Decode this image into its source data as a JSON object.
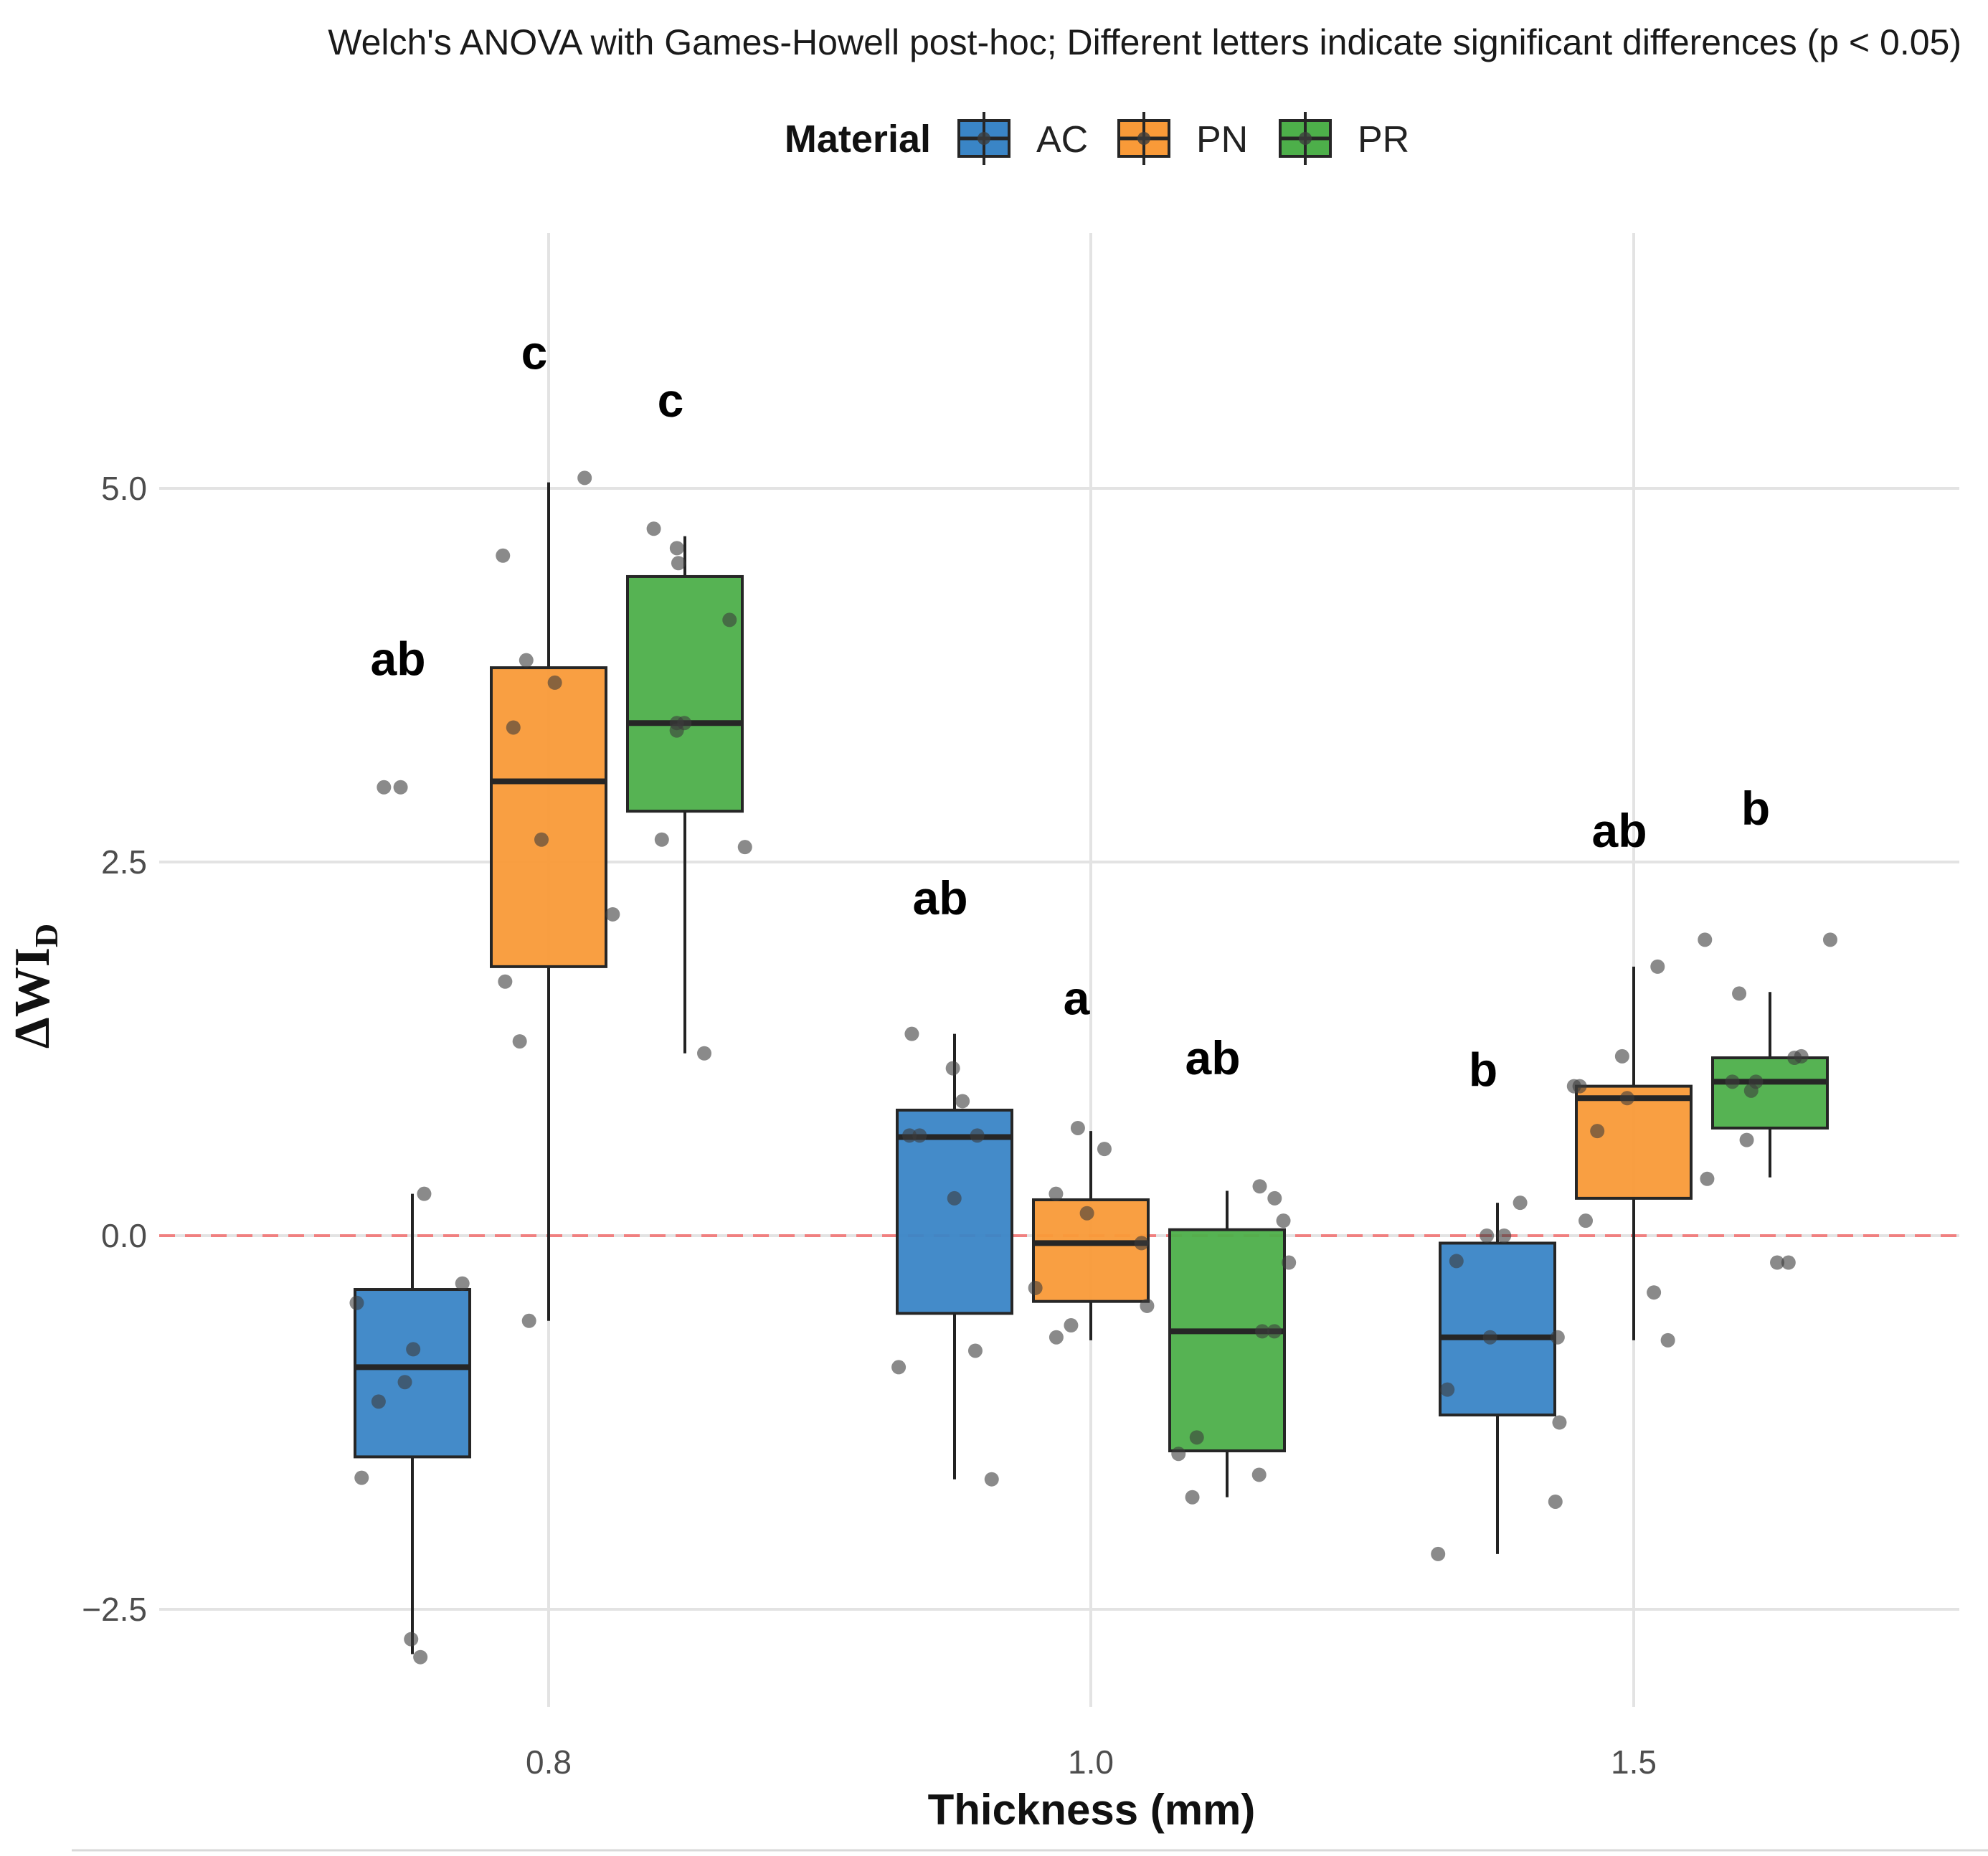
{
  "chart_data": {
    "type": "box",
    "subtitle": "Welch's ANOVA with Games-Howell post-hoc; Different letters indicate significant differences (p < 0.05)",
    "xlabel": "Thickness (mm)",
    "ylabel": "ΔWI",
    "ylabel_sub": "D",
    "categories": [
      "0.8",
      "1.0",
      "1.5"
    ],
    "ylim": [
      -3.2,
      6.7
    ],
    "yticks": [
      -2.5,
      0.0,
      2.5,
      5.0
    ],
    "ytick_labels": [
      "−2.5",
      "0.0",
      "2.5",
      "5.0"
    ],
    "reference_line": {
      "y": 0.0,
      "style": "dashed",
      "color": "#f08080"
    },
    "grid": true,
    "legend": {
      "title": "Material",
      "position": "top"
    },
    "series": [
      {
        "name": "AC",
        "color": "#3a85c6",
        "boxes": [
          {
            "category": "0.8",
            "whisker_low": -2.8,
            "q1": -1.48,
            "median": -0.88,
            "q3": -0.36,
            "whisker_high": 0.28,
            "letter": "ab",
            "letter_y": 3.75,
            "points": [
              -2.7,
              -2.82,
              -1.62,
              -1.11,
              -0.98,
              -0.76,
              -0.45,
              -0.32,
              0.28,
              3.0,
              3.0
            ]
          },
          {
            "category": "1.0",
            "whisker_low": -1.63,
            "q1": -0.52,
            "median": 0.66,
            "q3": 0.84,
            "whisker_high": 1.35,
            "letter": "ab",
            "letter_y": 2.15,
            "points": [
              -1.63,
              -0.77,
              -0.88,
              0.25,
              0.67,
              0.67,
              0.67,
              0.9,
              1.12,
              1.35
            ]
          },
          {
            "category": "1.5",
            "whisker_low": -2.13,
            "q1": -1.2,
            "median": -0.68,
            "q3": -0.05,
            "whisker_high": 0.22,
            "letter": "b",
            "letter_y": 1.0,
            "points": [
              -2.13,
              -1.78,
              -1.25,
              -1.03,
              -0.68,
              -0.68,
              -0.17,
              0.0,
              0.0,
              0.22
            ]
          }
        ]
      },
      {
        "name": "PN",
        "color": "#f99a38",
        "boxes": [
          {
            "category": "0.8",
            "whisker_low": -0.57,
            "q1": 1.8,
            "median": 3.04,
            "q3": 3.8,
            "whisker_high": 5.04,
            "letter": "c",
            "letter_y": 5.8,
            "points": [
              1.3,
              1.7,
              2.15,
              2.65,
              3.4,
              3.7,
              3.85,
              4.55,
              5.07,
              -0.57
            ]
          },
          {
            "category": "1.0",
            "whisker_low": -0.7,
            "q1": -0.44,
            "median": -0.05,
            "q3": 0.24,
            "whisker_high": 0.7,
            "letter": "a",
            "letter_y": 1.48,
            "points": [
              -0.6,
              -0.35,
              -0.47,
              -0.68,
              -0.05,
              0.15,
              0.28,
              0.58,
              0.72
            ]
          },
          {
            "category": "1.5",
            "whisker_low": -0.7,
            "q1": 0.25,
            "median": 0.92,
            "q3": 1.0,
            "whisker_high": 1.8,
            "letter": "ab",
            "letter_y": 2.6,
            "points": [
              -0.7,
              -0.38,
              0.1,
              0.7,
              0.92,
              1.0,
              1.0,
              1.2,
              1.8
            ]
          }
        ]
      },
      {
        "name": "PR",
        "color": "#4daf4a",
        "boxes": [
          {
            "category": "0.8",
            "whisker_low": 1.22,
            "q1": 2.84,
            "median": 3.43,
            "q3": 4.41,
            "whisker_high": 4.68,
            "letter": "c",
            "letter_y": 5.48,
            "points": [
              1.22,
              2.6,
              2.65,
              3.38,
              3.43,
              3.43,
              4.12,
              4.5,
              4.6,
              4.73
            ]
          },
          {
            "category": "1.0",
            "whisker_low": -1.75,
            "q1": -1.44,
            "median": -0.64,
            "q3": 0.04,
            "whisker_high": 0.3,
            "letter": "ab",
            "letter_y": 1.08,
            "points": [
              -1.75,
              -1.6,
              -1.46,
              -1.35,
              -0.64,
              -0.64,
              -0.18,
              0.1,
              0.25,
              0.33
            ]
          },
          {
            "category": "1.5",
            "whisker_low": 0.39,
            "q1": 0.72,
            "median": 1.03,
            "q3": 1.19,
            "whisker_high": 1.63,
            "letter": "b",
            "letter_y": 2.75,
            "points": [
              -0.18,
              -0.18,
              0.38,
              0.64,
              0.97,
              1.03,
              1.03,
              1.19,
              1.2,
              1.62,
              1.98,
              1.98
            ]
          }
        ]
      }
    ]
  }
}
